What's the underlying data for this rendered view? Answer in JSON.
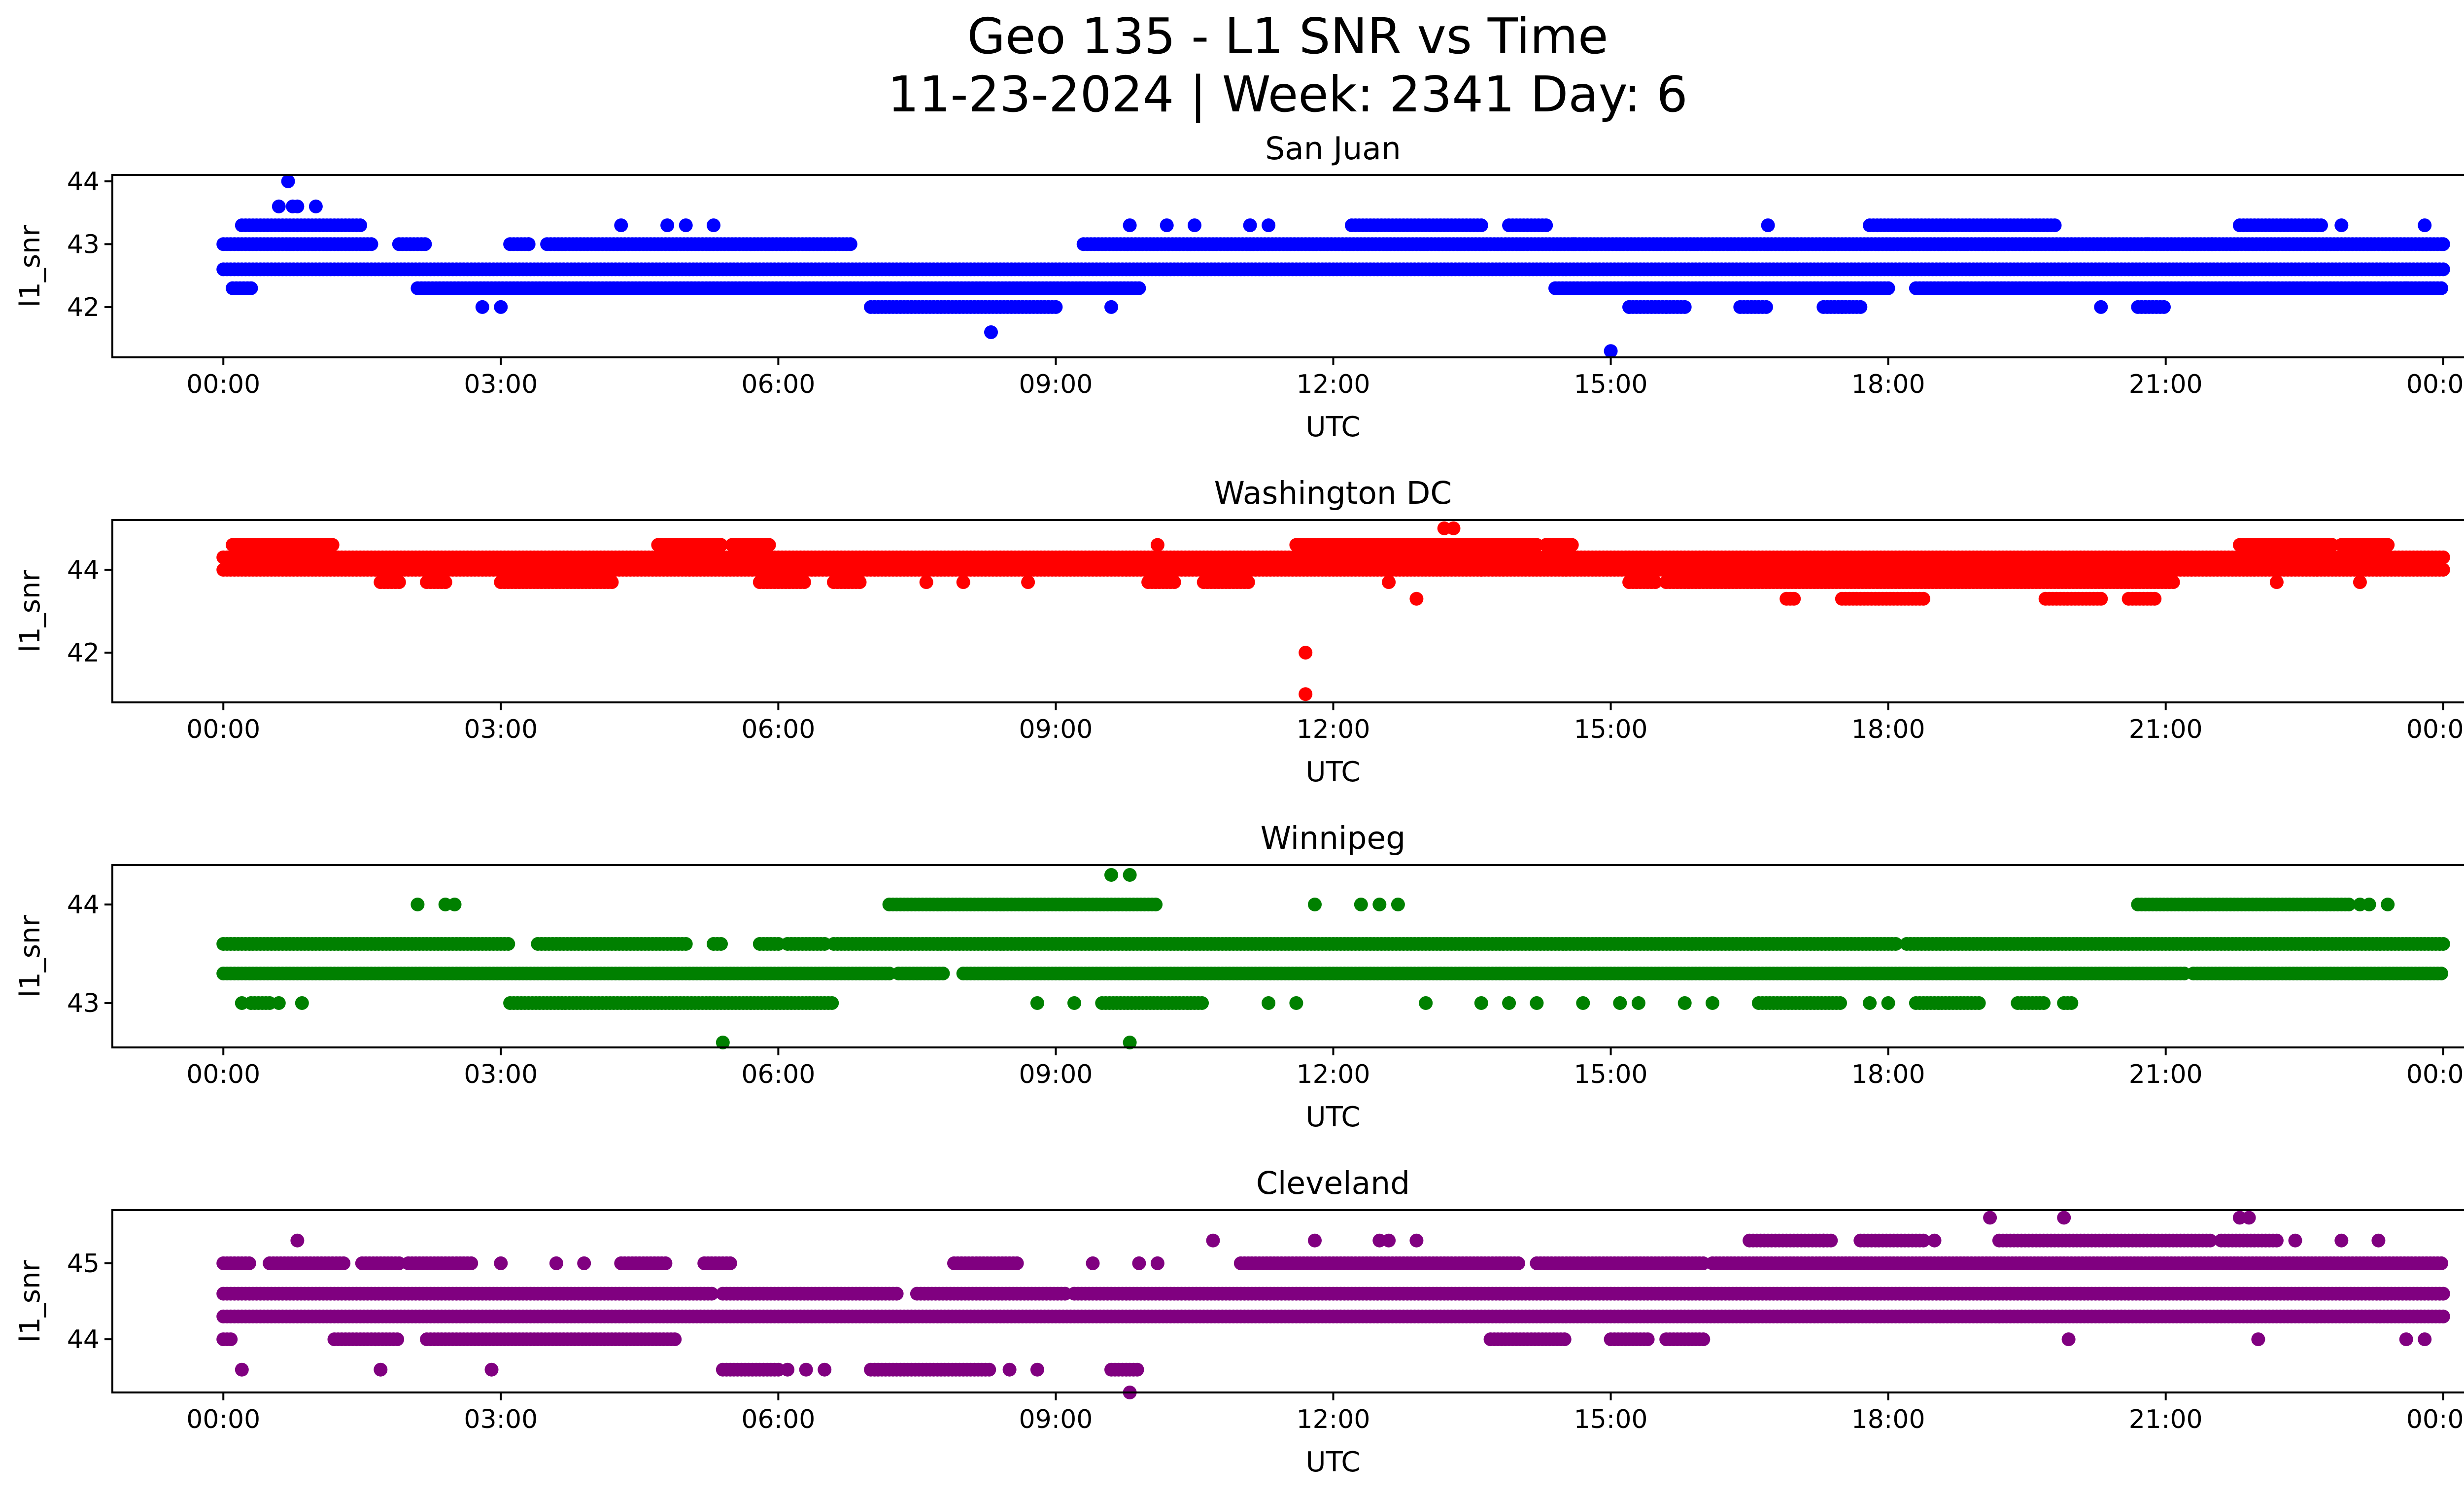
{
  "figure": {
    "title_line1": "Geo 135 - L1 SNR vs Time",
    "title_line2": "11-23-2024 | Week: 2341 Day: 6"
  },
  "chart_data": [
    {
      "type": "scatter",
      "title": "San Juan",
      "xlabel": "UTC",
      "ylabel": "l1_snr",
      "color": "#0000ff",
      "xticks": [
        "00:00",
        "03:00",
        "06:00",
        "09:00",
        "12:00",
        "15:00",
        "18:00",
        "21:00",
        "00:00"
      ],
      "xlim_hours": [
        -1.2,
        25.2
      ],
      "yticks": [
        42,
        43,
        44
      ],
      "ylim": [
        41.2,
        44.1
      ],
      "bands": [
        {
          "y": 42.6,
          "segments": [
            [
              0,
              24
            ]
          ]
        },
        {
          "y": 43.0,
          "segments": [
            [
              0,
              1.6
            ],
            [
              1.9,
              2.2
            ],
            [
              3.1,
              3.3
            ],
            [
              3.5,
              6.8
            ],
            [
              9.3,
              24
            ]
          ]
        },
        {
          "y": 42.3,
          "segments": [
            [
              0.1,
              0.3
            ],
            [
              2.1,
              9.9
            ],
            [
              14.4,
              18.0
            ],
            [
              18.3,
              24
            ]
          ]
        },
        {
          "y": 43.3,
          "segments": [
            [
              0.2,
              1.5
            ],
            [
              12.2,
              13.6
            ],
            [
              13.9,
              14.3
            ],
            [
              17.8,
              19.8
            ],
            [
              21.8,
              22.7
            ]
          ]
        },
        {
          "y": 42.0,
          "segments": [
            [
              7.0,
              9.0
            ],
            [
              15.2,
              15.8
            ],
            [
              16.4,
              16.7
            ],
            [
              17.3,
              17.7
            ],
            [
              20.7,
              21.0
            ]
          ]
        }
      ],
      "scattered": [
        [
          0.6,
          43.6
        ],
        [
          0.7,
          44.0
        ],
        [
          0.75,
          43.6
        ],
        [
          0.8,
          43.6
        ],
        [
          1.0,
          43.6
        ],
        [
          2.8,
          42.0
        ],
        [
          3.0,
          42.0
        ],
        [
          3.3,
          43.0
        ],
        [
          4.3,
          43.3
        ],
        [
          4.8,
          43.3
        ],
        [
          5.0,
          43.3
        ],
        [
          5.3,
          43.3
        ],
        [
          8.3,
          41.6
        ],
        [
          9.8,
          43.3
        ],
        [
          9.6,
          42.0
        ],
        [
          10.2,
          43.3
        ],
        [
          10.5,
          43.3
        ],
        [
          11.1,
          43.3
        ],
        [
          11.3,
          43.3
        ],
        [
          14.6,
          43.0
        ],
        [
          15.0,
          41.3
        ],
        [
          15.2,
          42.0
        ],
        [
          15.6,
          42.0
        ],
        [
          16.7,
          43.3
        ],
        [
          17.5,
          42.0
        ],
        [
          20.3,
          42.0
        ],
        [
          20.8,
          43.0
        ],
        [
          21.5,
          43.0
        ],
        [
          22.1,
          42.3
        ],
        [
          22.5,
          42.3
        ],
        [
          22.9,
          43.3
        ],
        [
          23.6,
          42.3
        ],
        [
          23.8,
          43.3
        ],
        [
          24.0,
          43.0
        ]
      ]
    },
    {
      "type": "scatter",
      "title": "Washington DC",
      "xlabel": "UTC",
      "ylabel": "l1_snr",
      "color": "#ff0000",
      "xticks": [
        "00:00",
        "03:00",
        "06:00",
        "09:00",
        "12:00",
        "15:00",
        "18:00",
        "21:00",
        "00:00"
      ],
      "xlim_hours": [
        -1.2,
        25.2
      ],
      "yticks": [
        42,
        44
      ],
      "ylim": [
        40.8,
        45.2
      ],
      "bands": [
        {
          "y": 44.3,
          "segments": [
            [
              0,
              24
            ]
          ]
        },
        {
          "y": 44.0,
          "segments": [
            [
              0,
              24
            ]
          ]
        },
        {
          "y": 44.6,
          "segments": [
            [
              0.1,
              1.2
            ],
            [
              4.7,
              5.4
            ],
            [
              5.5,
              5.9
            ],
            [
              11.6,
              14.2
            ],
            [
              14.3,
              14.6
            ],
            [
              21.8,
              22.8
            ],
            [
              22.9,
              23.4
            ]
          ]
        },
        {
          "y": 43.7,
          "segments": [
            [
              1.7,
              1.9
            ],
            [
              2.2,
              2.4
            ],
            [
              3.0,
              4.2
            ],
            [
              5.8,
              6.3
            ],
            [
              6.6,
              6.9
            ],
            [
              10.0,
              10.3
            ],
            [
              10.6,
              11.1
            ],
            [
              15.2,
              15.5
            ],
            [
              15.6,
              21.1
            ]
          ]
        },
        {
          "y": 43.3,
          "segments": [
            [
              16.9,
              17.0
            ],
            [
              17.5,
              18.4
            ],
            [
              19.7,
              20.3
            ],
            [
              20.6,
              20.9
            ]
          ]
        }
      ],
      "scattered": [
        [
          11.7,
          42.0
        ],
        [
          11.7,
          41.0
        ],
        [
          13.3,
          45.0
        ],
        [
          13.2,
          45.0
        ],
        [
          12.9,
          43.3
        ],
        [
          12.6,
          43.7
        ],
        [
          13.6,
          44.0
        ],
        [
          8.0,
          43.7
        ],
        [
          8.7,
          43.7
        ],
        [
          7.6,
          43.7
        ],
        [
          10.1,
          44.6
        ],
        [
          22.2,
          43.7
        ],
        [
          23.1,
          43.7
        ],
        [
          23.4,
          44.6
        ]
      ]
    },
    {
      "type": "scatter",
      "title": "Winnipeg",
      "xlabel": "UTC",
      "ylabel": "l1_snr",
      "color": "#008000",
      "xticks": [
        "00:00",
        "03:00",
        "06:00",
        "09:00",
        "12:00",
        "15:00",
        "18:00",
        "21:00",
        "00:00"
      ],
      "xlim_hours": [
        -1.2,
        25.2
      ],
      "yticks": [
        43,
        44
      ],
      "ylim": [
        42.55,
        44.4
      ],
      "bands": [
        {
          "y": 43.6,
          "segments": [
            [
              0,
              3.1
            ],
            [
              3.4,
              5.0
            ],
            [
              5.3,
              5.4
            ],
            [
              5.8,
              6.0
            ],
            [
              6.1,
              6.5
            ],
            [
              6.6,
              18.1
            ],
            [
              18.2,
              24
            ]
          ]
        },
        {
          "y": 43.3,
          "segments": [
            [
              0,
              7.2
            ],
            [
              7.3,
              7.8
            ],
            [
              8.0,
              21.2
            ],
            [
              21.3,
              24
            ]
          ]
        },
        {
          "y": 43.0,
          "segments": [
            [
              0.3,
              0.5
            ],
            [
              3.1,
              6.6
            ],
            [
              9.5,
              10.6
            ],
            [
              16.6,
              17.5
            ],
            [
              18.3,
              19.0
            ],
            [
              19.4,
              19.7
            ],
            [
              19.9,
              20.0
            ]
          ]
        },
        {
          "y": 44.0,
          "segments": [
            [
              7.2,
              10.1
            ],
            [
              20.7,
              23.0
            ]
          ]
        }
      ],
      "scattered": [
        [
          0.2,
          43.0
        ],
        [
          0.6,
          43.0
        ],
        [
          0.85,
          43.0
        ],
        [
          2.1,
          44.0
        ],
        [
          2.4,
          44.0
        ],
        [
          2.5,
          44.0
        ],
        [
          5.4,
          42.6
        ],
        [
          9.6,
          44.3
        ],
        [
          9.8,
          44.3
        ],
        [
          9.8,
          42.6
        ],
        [
          8.8,
          43.0
        ],
        [
          9.2,
          43.0
        ],
        [
          11.6,
          43.0
        ],
        [
          11.8,
          44.0
        ],
        [
          11.3,
          43.0
        ],
        [
          12.3,
          44.0
        ],
        [
          12.5,
          44.0
        ],
        [
          12.7,
          44.0
        ],
        [
          13.0,
          43.0
        ],
        [
          13.6,
          43.0
        ],
        [
          13.9,
          43.0
        ],
        [
          14.2,
          43.0
        ],
        [
          14.7,
          43.0
        ],
        [
          15.1,
          43.0
        ],
        [
          15.3,
          43.0
        ],
        [
          15.8,
          43.0
        ],
        [
          16.1,
          43.0
        ],
        [
          17.8,
          43.0
        ],
        [
          18.0,
          43.0
        ],
        [
          21.0,
          43.3
        ],
        [
          23.2,
          44.0
        ],
        [
          23.4,
          44.0
        ],
        [
          23.1,
          44.0
        ]
      ]
    },
    {
      "type": "scatter",
      "title": "Cleveland",
      "xlabel": "UTC",
      "ylabel": "l1_snr",
      "color": "#800080",
      "xticks": [
        "00:00",
        "03:00",
        "06:00",
        "09:00",
        "12:00",
        "15:00",
        "18:00",
        "21:00",
        "00:00"
      ],
      "xlim_hours": [
        -1.2,
        25.2
      ],
      "yticks": [
        44,
        45
      ],
      "ylim": [
        43.3,
        45.7
      ],
      "bands": [
        {
          "y": 44.6,
          "segments": [
            [
              0,
              5.3
            ],
            [
              5.4,
              7.3
            ],
            [
              7.5,
              9.1
            ],
            [
              9.2,
              24
            ]
          ]
        },
        {
          "y": 44.3,
          "segments": [
            [
              0,
              24
            ]
          ]
        },
        {
          "y": 45.0,
          "segments": [
            [
              0,
              0.3
            ],
            [
              0.5,
              1.3
            ],
            [
              1.5,
              1.9
            ],
            [
              2.0,
              2.7
            ],
            [
              4.3,
              4.8
            ],
            [
              5.2,
              5.5
            ],
            [
              7.9,
              8.6
            ],
            [
              11.0,
              14.0
            ],
            [
              14.2,
              16.0
            ],
            [
              16.1,
              24
            ]
          ]
        },
        {
          "y": 44.0,
          "segments": [
            [
              0,
              0.1
            ],
            [
              1.2,
              1.9
            ],
            [
              2.2,
              4.9
            ],
            [
              13.7,
              14.5
            ],
            [
              15.0,
              15.4
            ],
            [
              15.6,
              16.0
            ]
          ]
        },
        {
          "y": 45.3,
          "segments": [
            [
              16.5,
              17.4
            ],
            [
              17.7,
              18.4
            ],
            [
              19.2,
              21.5
            ],
            [
              21.6,
              22.2
            ]
          ]
        },
        {
          "y": 43.6,
          "segments": [
            [
              5.4,
              6.0
            ],
            [
              7.0,
              8.3
            ],
            [
              9.6,
              9.9
            ]
          ]
        }
      ],
      "scattered": [
        [
          0.8,
          45.3
        ],
        [
          0.2,
          43.6
        ],
        [
          1.7,
          43.6
        ],
        [
          2.9,
          43.6
        ],
        [
          3.0,
          45.0
        ],
        [
          3.6,
          45.0
        ],
        [
          3.9,
          45.0
        ],
        [
          6.1,
          43.6
        ],
        [
          6.3,
          43.6
        ],
        [
          6.5,
          43.6
        ],
        [
          8.5,
          43.6
        ],
        [
          8.8,
          43.6
        ],
        [
          9.8,
          43.3
        ],
        [
          9.4,
          45.0
        ],
        [
          9.9,
          45.0
        ],
        [
          10.1,
          45.0
        ],
        [
          10.7,
          45.3
        ],
        [
          11.8,
          45.3
        ],
        [
          12.5,
          45.3
        ],
        [
          12.6,
          45.3
        ],
        [
          12.9,
          45.3
        ],
        [
          17.3,
          45.3
        ],
        [
          18.5,
          45.3
        ],
        [
          19.1,
          45.6
        ],
        [
          19.2,
          44.3
        ],
        [
          19.9,
          45.6
        ],
        [
          19.95,
          44.0
        ],
        [
          21.8,
          45.6
        ],
        [
          21.9,
          45.6
        ],
        [
          22.0,
          44.0
        ],
        [
          22.4,
          45.3
        ],
        [
          22.9,
          45.3
        ],
        [
          23.3,
          45.3
        ],
        [
          23.6,
          44.0
        ],
        [
          23.8,
          44.0
        ]
      ]
    }
  ]
}
